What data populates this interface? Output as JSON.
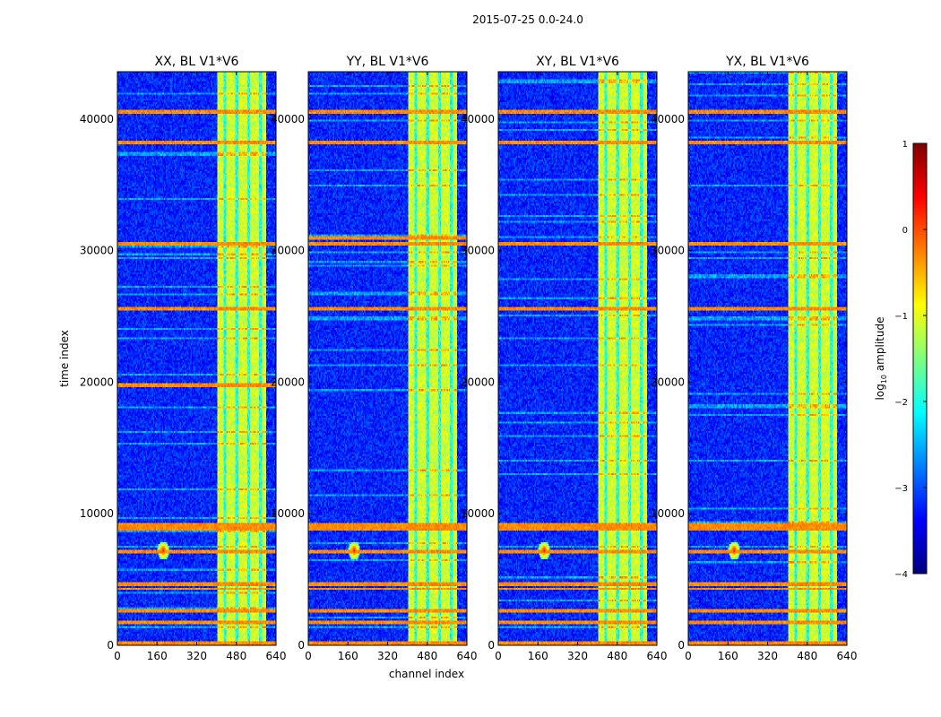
{
  "figure": {
    "suptitle": "2015-07-25 0.0-24.0",
    "xlabel": "channel index",
    "ylabel": "time index"
  },
  "colorbar": {
    "label_prefix": "log",
    "label_sub": "10",
    "label_suffix": " amplitude",
    "ticks": [
      1,
      0,
      -1,
      -2,
      -3,
      -4
    ],
    "tick_labels": [
      "1",
      "0",
      "−1",
      "−2",
      "−3",
      "−4"
    ],
    "range": [
      -4,
      1
    ],
    "colors": [
      "#00007f",
      "#0000ff",
      "#007fff",
      "#00ffff",
      "#7fff7f",
      "#ffff00",
      "#ff7f00",
      "#ff0000",
      "#7f0000"
    ]
  },
  "chart_data": [
    {
      "type": "heatmap",
      "title": "XX, BL V1*V6",
      "xlim": [
        0,
        640
      ],
      "ylim": [
        0,
        43600
      ],
      "xticks": [
        0,
        160,
        320,
        480,
        640
      ],
      "yticks": [
        0,
        10000,
        20000,
        30000,
        40000
      ],
      "background_log_amplitude": -3.2,
      "bright_channel_band": [
        405,
        600
      ],
      "rfi_time_rows": [
        200,
        1800,
        2600,
        4300,
        4700,
        7100,
        8900,
        9200,
        19800,
        25600,
        30500,
        38200,
        40500
      ],
      "burst_channel": 185,
      "burst_time": 7200
    },
    {
      "type": "heatmap",
      "title": "YY, BL V1*V6",
      "xlim": [
        0,
        640
      ],
      "ylim": [
        0,
        43600
      ],
      "xticks": [
        0,
        160,
        320,
        480,
        640
      ],
      "yticks": [
        0,
        10000,
        20000,
        30000,
        40000
      ],
      "background_log_amplitude": -3.2,
      "bright_channel_band": [
        405,
        600
      ],
      "rfi_time_rows": [
        200,
        1800,
        2600,
        4300,
        4700,
        7100,
        8900,
        9200,
        25600,
        30500,
        31000,
        38200,
        40500
      ],
      "burst_channel": 185,
      "burst_time": 7200
    },
    {
      "type": "heatmap",
      "title": "XY, BL V1*V6",
      "xlim": [
        0,
        640
      ],
      "ylim": [
        0,
        43600
      ],
      "xticks": [
        0,
        160,
        320,
        480,
        640
      ],
      "yticks": [
        0,
        10000,
        20000,
        30000,
        40000
      ],
      "background_log_amplitude": -3.2,
      "bright_channel_band": [
        405,
        600
      ],
      "rfi_time_rows": [
        200,
        1800,
        2600,
        4300,
        4700,
        7100,
        8900,
        9200,
        25600,
        30500,
        38200,
        40500
      ],
      "burst_channel": 185,
      "burst_time": 7200
    },
    {
      "type": "heatmap",
      "title": "YX, BL V1*V6",
      "xlim": [
        0,
        640
      ],
      "ylim": [
        0,
        43600
      ],
      "xticks": [
        0,
        160,
        320,
        480,
        640
      ],
      "yticks": [
        0,
        10000,
        20000,
        30000,
        40000
      ],
      "background_log_amplitude": -3.2,
      "bright_channel_band": [
        405,
        600
      ],
      "rfi_time_rows": [
        200,
        1800,
        2600,
        4300,
        4700,
        7100,
        8900,
        9200,
        25600,
        30500,
        38200,
        40500
      ],
      "burst_channel": 185,
      "burst_time": 7200
    }
  ]
}
